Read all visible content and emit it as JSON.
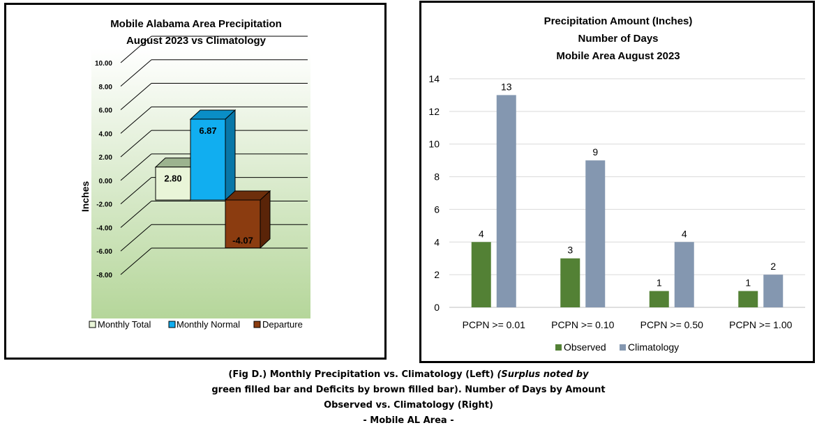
{
  "charts": {
    "left": {
      "title_line1": "Mobile Alabama Area Precipitation",
      "title_line2": "August 2023 vs Climatology"
    },
    "right": {
      "title_line1": "Precipitation Amount (Inches)",
      "title_line2": "Number of Days",
      "title_line3": "Mobile Area August 2023"
    }
  },
  "chart_data": [
    {
      "type": "bar",
      "title": "Mobile Alabama Area Precipitation August 2023 vs Climatology",
      "ylabel": "Inches",
      "xlabel": "",
      "ylim": [
        -8,
        10
      ],
      "yticks": [
        "-8.00",
        "-6.00",
        "-4.00",
        "-2.00",
        "0.00",
        "2.00",
        "4.00",
        "6.00",
        "8.00",
        "10.00"
      ],
      "series": [
        {
          "name": "Monthly Total",
          "values": [
            2.8
          ],
          "label": "2.80",
          "color": "#e9f5d8"
        },
        {
          "name": "Monthly Normal",
          "values": [
            6.87
          ],
          "label": "6.87",
          "color": "#11aef0"
        },
        {
          "name": "Departure",
          "values": [
            -4.07
          ],
          "label": "-4.07",
          "color": "#8b3c10"
        }
      ],
      "grid": true,
      "legend": "bottom",
      "style": "3d"
    },
    {
      "type": "bar",
      "title": "Precipitation Amount (Inches) Number of Days Mobile Area August 2023",
      "categories": [
        "PCPN >= 0.01",
        "PCPN >= 0.10",
        "PCPN >= 0.50",
        "PCPN >= 1.00"
      ],
      "series": [
        {
          "name": "Observed",
          "values": [
            4,
            3,
            1,
            1
          ],
          "color": "#538135"
        },
        {
          "name": "Climatology",
          "values": [
            13,
            9,
            4,
            2
          ],
          "color": "#8497b0"
        }
      ],
      "ylim": [
        0,
        14
      ],
      "yticks": [
        0,
        2,
        4,
        6,
        8,
        10,
        12,
        14
      ],
      "grid": true,
      "legend": "bottom"
    }
  ],
  "caption": {
    "line1_bold": "(Fig D.) Monthly Precipitation vs. Climatology (Left) ",
    "line1_italic": "(Surplus noted by",
    "line2": "green filled bar and Deficits by brown filled bar). Number of Days by Amount",
    "line3": "Observed vs. Climatology (Right)",
    "line4": "- Mobile AL Area -"
  }
}
